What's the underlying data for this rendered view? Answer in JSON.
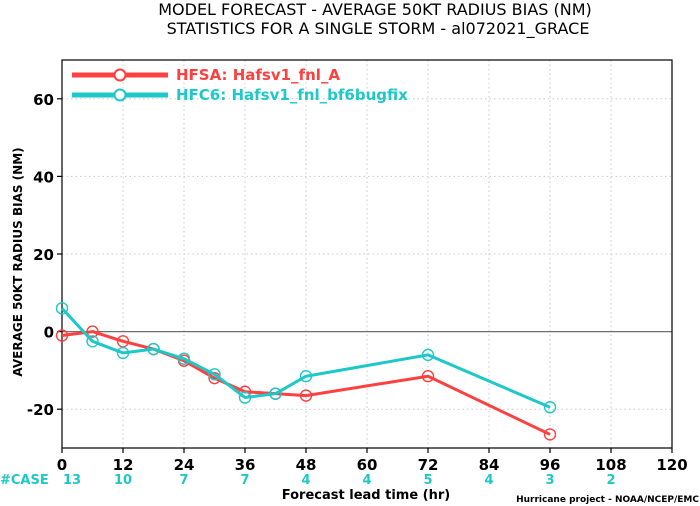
{
  "chart_data": {
    "type": "line",
    "title": "MODEL FORECAST - AVERAGE 50KT RADIUS BIAS (NM)",
    "subtitle": "STATISTICS FOR A SINGLE STORM - al072021_GRACE",
    "xlabel": "Forecast lead time (hr)",
    "ylabel": "AVERAGE 50KT RADIUS BIAS (NM)",
    "xlim": [
      0,
      120
    ],
    "ylim": [
      -30,
      70
    ],
    "xticks": [
      0,
      12,
      24,
      36,
      48,
      60,
      72,
      84,
      96,
      108,
      120
    ],
    "yticks": [
      -20,
      0,
      20,
      40,
      60
    ],
    "grid": true,
    "zero_line": true,
    "legend_position": "top-left",
    "series": [
      {
        "name": "HFSA: Hafsv1_fnl_A",
        "color": "#ff4040",
        "x": [
          0,
          6,
          12,
          18,
          24,
          30,
          36,
          42,
          48,
          72,
          96
        ],
        "y": [
          -1,
          0,
          -2.5,
          -4.5,
          -7.5,
          -12,
          -15.5,
          -16,
          -16.5,
          -11.5,
          -26.5
        ]
      },
      {
        "name": "HFC6: Hafsv1_fnl_bf6bugfix",
        "color": "#1ec8c8",
        "x": [
          0,
          6,
          12,
          18,
          24,
          30,
          36,
          42,
          48,
          72,
          96
        ],
        "y": [
          6,
          -2.5,
          -5.5,
          -4.5,
          -7,
          -11,
          -17,
          -16,
          -11.5,
          -6,
          -19.5
        ]
      }
    ],
    "cases": {
      "label": "#CASE",
      "x": [
        0,
        12,
        24,
        36,
        48,
        60,
        72,
        84,
        96,
        108
      ],
      "values": [
        "13",
        "10",
        "7",
        "7",
        "4",
        "4",
        "5",
        "4",
        "3",
        "2"
      ]
    },
    "credit": "Hurricane project - NOAA/NCEP/EMC"
  }
}
